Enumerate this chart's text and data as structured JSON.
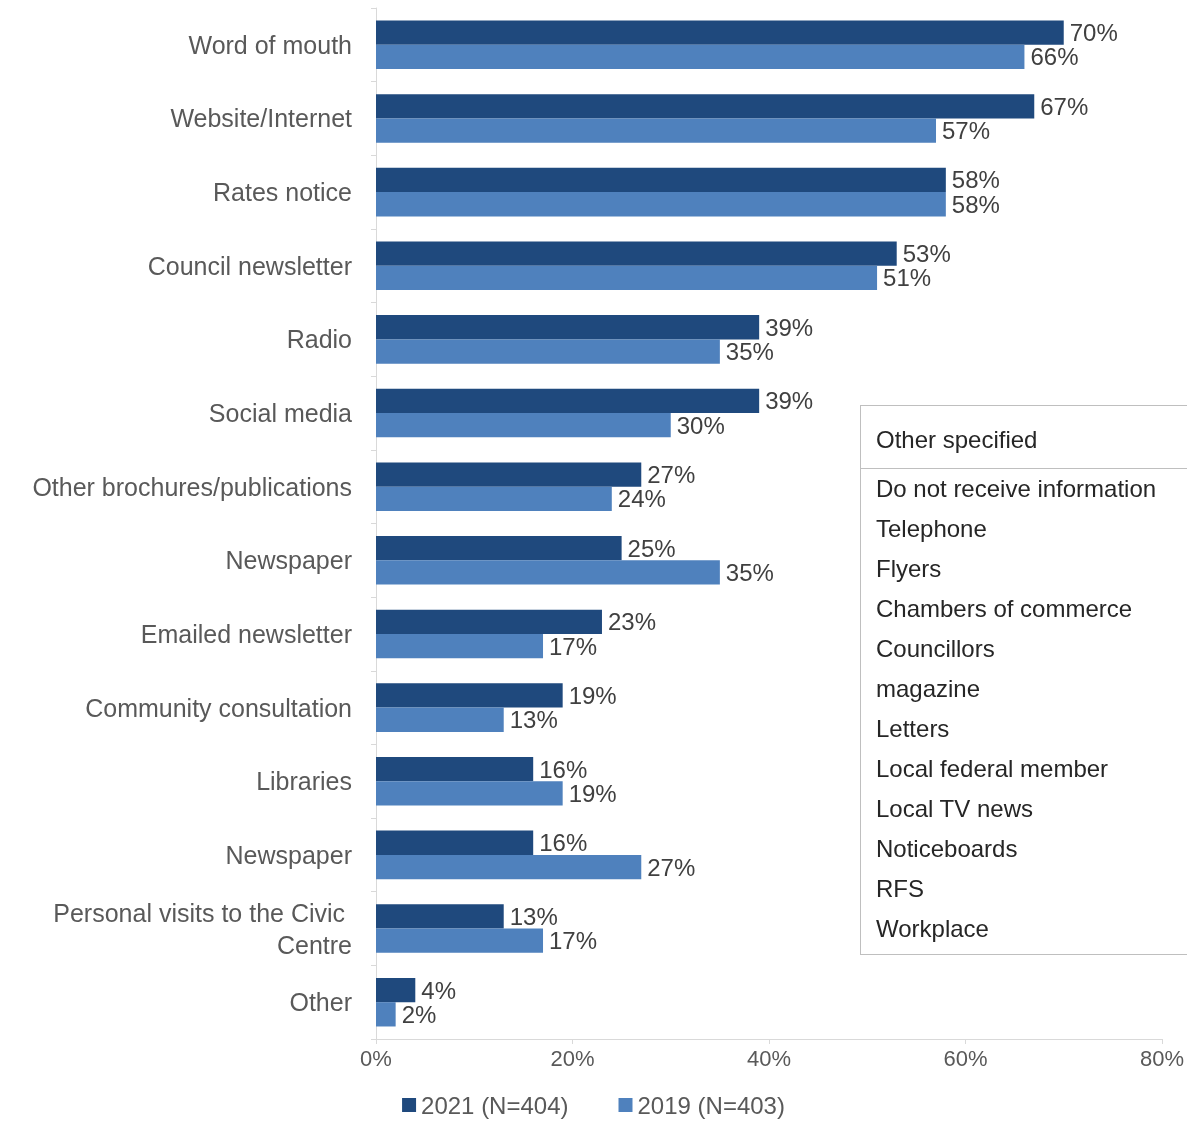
{
  "chart_data": [
    {
      "type": "bar",
      "orientation": "horizontal",
      "categories": [
        "Word of mouth",
        "Website/Internet",
        "Rates notice",
        "Council newsletter",
        "Radio",
        "Social media",
        "Other brochures/publications",
        "Newspaper",
        "Emailed newsletter",
        "Community consultation",
        "Libraries",
        "Newspaper",
        "Personal visits to the Civic Centre",
        "Other"
      ],
      "series": [
        {
          "name": "2021 (N=404)",
          "color": "#1f497d",
          "values": [
            70,
            67,
            58,
            53,
            39,
            39,
            27,
            25,
            23,
            19,
            16,
            16,
            13,
            4
          ],
          "value_labels": [
            "70%",
            "67%",
            "58%",
            "53%",
            "39%",
            "39%",
            "27%",
            "25%",
            "23%",
            "19%",
            "16%",
            "16%",
            "13%",
            "4%"
          ]
        },
        {
          "name": "2019 (N=403)",
          "color": "#4f81bd",
          "values": [
            66,
            57,
            58,
            51,
            35,
            30,
            24,
            35,
            17,
            13,
            19,
            27,
            17,
            2
          ],
          "value_labels": [
            "66%",
            "57%",
            "58%",
            "51%",
            "35%",
            "30%",
            "24%",
            "35%",
            "17%",
            "13%",
            "19%",
            "27%",
            "17%",
            "2%"
          ]
        }
      ],
      "xlim": [
        0,
        80
      ],
      "xticks": [
        {
          "value": 0,
          "label": "0%"
        },
        {
          "value": 20,
          "label": "20%"
        },
        {
          "value": 40,
          "label": "40%"
        },
        {
          "value": 60,
          "label": "60%"
        },
        {
          "value": 80,
          "label": "80%"
        }
      ],
      "grid": false,
      "legend": "bottom"
    },
    {
      "type": "other",
      "title": "Other specified",
      "annotations": [
        "Do not receive information",
        "Telephone",
        "Flyers",
        "Chambers of commerce",
        "Councillors",
        "magazine",
        "Letters",
        "Local federal member",
        "Local TV news",
        "Noticeboards",
        "RFS",
        "Workplace"
      ]
    }
  ]
}
